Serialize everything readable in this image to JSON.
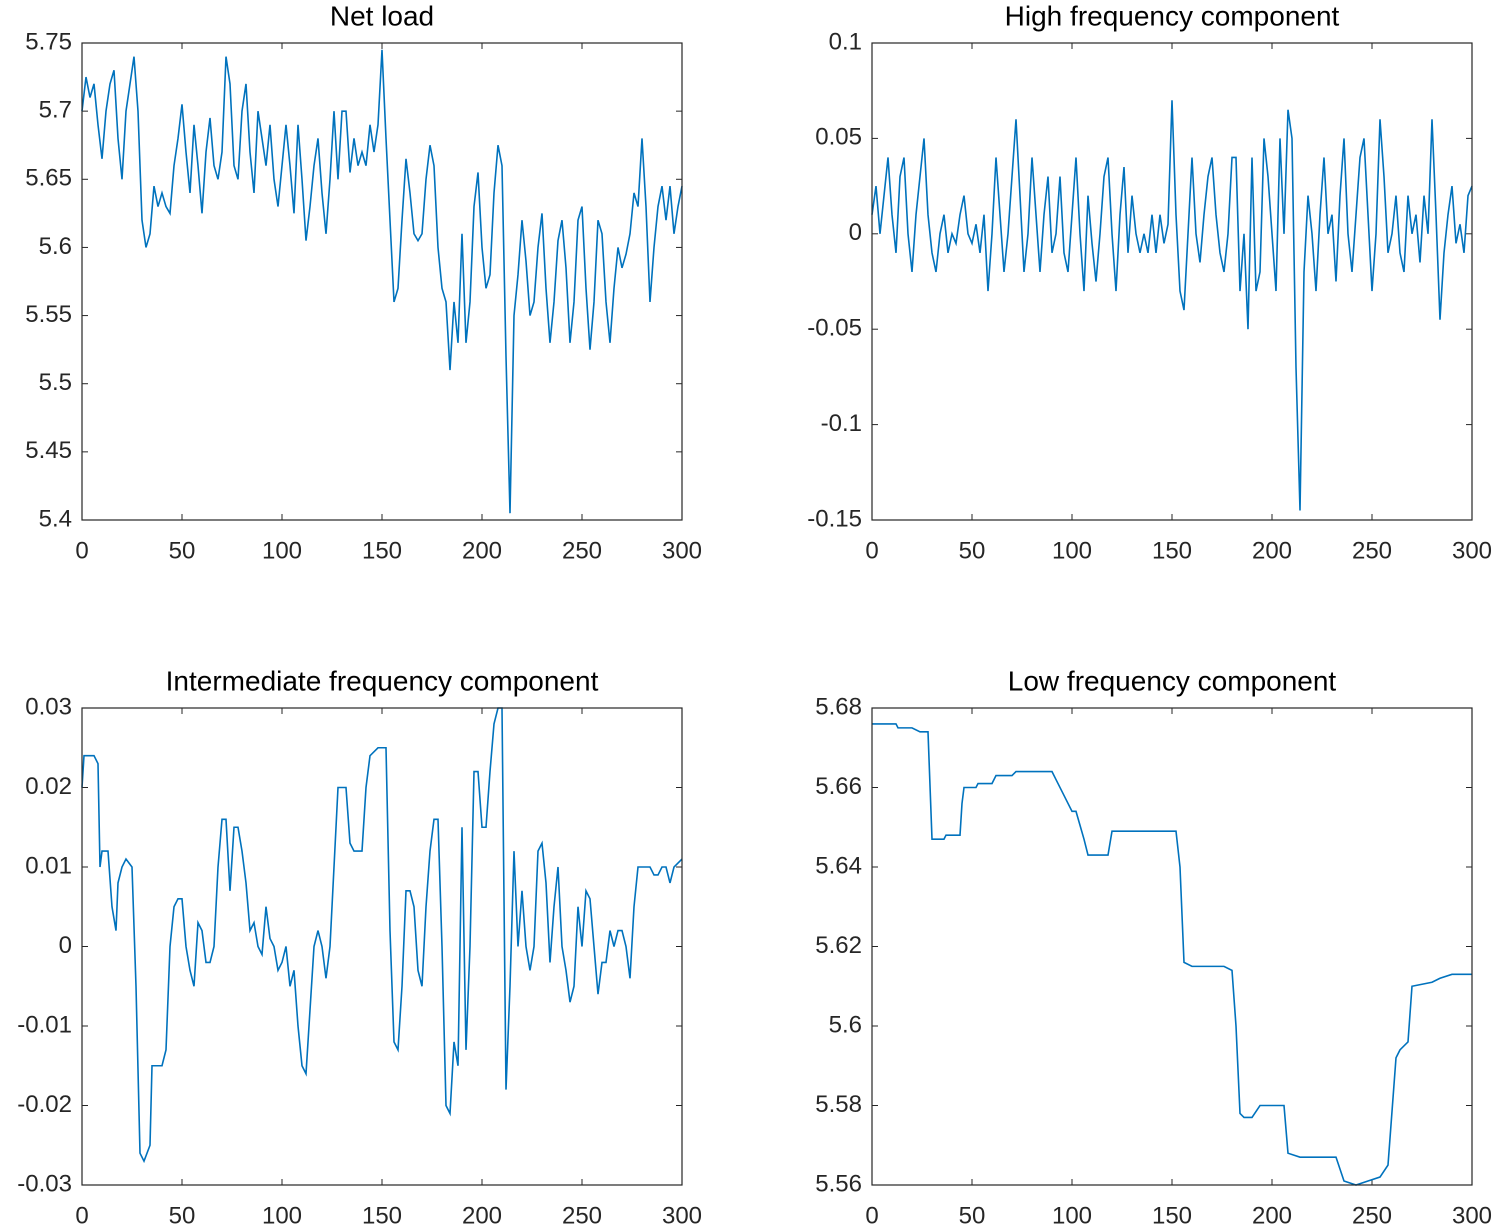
{
  "chart_data": [
    {
      "type": "line",
      "title": "Net load",
      "color": "#0072bd",
      "x": [
        0,
        2,
        4,
        6,
        8,
        10,
        12,
        14,
        16,
        18,
        20,
        22,
        24,
        26,
        28,
        30,
        32,
        34,
        36,
        38,
        40,
        42,
        44,
        46,
        48,
        50,
        52,
        54,
        56,
        58,
        60,
        62,
        64,
        66,
        68,
        70,
        72,
        74,
        76,
        78,
        80,
        82,
        84,
        86,
        88,
        90,
        92,
        94,
        96,
        98,
        100,
        102,
        104,
        106,
        108,
        110,
        112,
        114,
        116,
        118,
        120,
        122,
        124,
        126,
        128,
        130,
        132,
        134,
        136,
        138,
        140,
        142,
        144,
        146,
        148,
        150,
        152,
        154,
        156,
        158,
        160,
        162,
        164,
        166,
        168,
        170,
        172,
        174,
        176,
        178,
        180,
        182,
        184,
        186,
        188,
        190,
        192,
        194,
        196,
        198,
        200,
        202,
        204,
        206,
        208,
        210,
        212,
        214,
        216,
        218,
        220,
        222,
        224,
        226,
        228,
        230,
        232,
        234,
        236,
        238,
        240,
        242,
        244,
        246,
        248,
        250,
        252,
        254,
        256,
        258,
        260,
        262,
        264,
        266,
        268,
        270,
        272,
        274,
        276,
        278,
        280,
        282,
        284,
        286,
        288,
        290,
        292,
        294,
        296,
        298,
        300
      ],
      "values": [
        5.7,
        5.725,
        5.71,
        5.72,
        5.69,
        5.665,
        5.7,
        5.72,
        5.73,
        5.68,
        5.65,
        5.7,
        5.72,
        5.74,
        5.7,
        5.62,
        5.6,
        5.61,
        5.645,
        5.63,
        5.64,
        5.63,
        5.625,
        5.66,
        5.68,
        5.705,
        5.67,
        5.64,
        5.69,
        5.66,
        5.625,
        5.67,
        5.695,
        5.66,
        5.65,
        5.67,
        5.74,
        5.72,
        5.66,
        5.65,
        5.7,
        5.72,
        5.67,
        5.64,
        5.7,
        5.68,
        5.66,
        5.69,
        5.65,
        5.63,
        5.66,
        5.69,
        5.66,
        5.625,
        5.69,
        5.65,
        5.605,
        5.63,
        5.66,
        5.68,
        5.64,
        5.61,
        5.65,
        5.7,
        5.65,
        5.7,
        5.7,
        5.655,
        5.68,
        5.66,
        5.67,
        5.66,
        5.69,
        5.67,
        5.69,
        5.745,
        5.68,
        5.62,
        5.56,
        5.57,
        5.62,
        5.665,
        5.64,
        5.61,
        5.605,
        5.61,
        5.65,
        5.675,
        5.66,
        5.6,
        5.57,
        5.56,
        5.51,
        5.56,
        5.53,
        5.61,
        5.53,
        5.56,
        5.63,
        5.655,
        5.6,
        5.57,
        5.58,
        5.64,
        5.675,
        5.66,
        5.52,
        5.405,
        5.55,
        5.58,
        5.62,
        5.59,
        5.55,
        5.56,
        5.6,
        5.625,
        5.57,
        5.53,
        5.56,
        5.605,
        5.62,
        5.585,
        5.53,
        5.56,
        5.62,
        5.63,
        5.57,
        5.525,
        5.56,
        5.62,
        5.61,
        5.56,
        5.53,
        5.57,
        5.6,
        5.585,
        5.595,
        5.61,
        5.64,
        5.63,
        5.68,
        5.63,
        5.56,
        5.6,
        5.63,
        5.645,
        5.62,
        5.645,
        5.61,
        5.63,
        5.645
      ],
      "xlim": [
        0,
        300
      ],
      "xticks": [
        0,
        50,
        100,
        150,
        200,
        250,
        300
      ],
      "ylim": [
        5.4,
        5.75
      ],
      "yticks": [
        5.4,
        5.45,
        5.5,
        5.55,
        5.6,
        5.65,
        5.7,
        5.75
      ]
    },
    {
      "type": "line",
      "title": "High frequency component",
      "color": "#0072bd",
      "x": [
        0,
        2,
        4,
        6,
        8,
        10,
        12,
        14,
        16,
        18,
        20,
        22,
        24,
        26,
        28,
        30,
        32,
        34,
        36,
        38,
        40,
        42,
        44,
        46,
        48,
        50,
        52,
        54,
        56,
        58,
        60,
        62,
        64,
        66,
        68,
        70,
        72,
        74,
        76,
        78,
        80,
        82,
        84,
        86,
        88,
        90,
        92,
        94,
        96,
        98,
        100,
        102,
        104,
        106,
        108,
        110,
        112,
        114,
        116,
        118,
        120,
        122,
        124,
        126,
        128,
        130,
        132,
        134,
        136,
        138,
        140,
        142,
        144,
        146,
        148,
        150,
        152,
        154,
        156,
        158,
        160,
        162,
        164,
        166,
        168,
        170,
        172,
        174,
        176,
        178,
        180,
        182,
        184,
        186,
        188,
        190,
        192,
        194,
        196,
        198,
        200,
        202,
        204,
        206,
        208,
        210,
        212,
        214,
        216,
        218,
        220,
        222,
        224,
        226,
        228,
        230,
        232,
        234,
        236,
        238,
        240,
        242,
        244,
        246,
        248,
        250,
        252,
        254,
        256,
        258,
        260,
        262,
        264,
        266,
        268,
        270,
        272,
        274,
        276,
        278,
        280,
        282,
        284,
        286,
        288,
        290,
        292,
        294,
        296,
        298,
        300
      ],
      "values": [
        0.01,
        0.025,
        0.0,
        0.02,
        0.04,
        0.01,
        -0.01,
        0.03,
        0.04,
        0.0,
        -0.02,
        0.01,
        0.03,
        0.05,
        0.01,
        -0.01,
        -0.02,
        0.0,
        0.01,
        -0.01,
        0.0,
        -0.005,
        0.01,
        0.02,
        0.0,
        -0.005,
        0.005,
        -0.01,
        0.01,
        -0.03,
        0.0,
        0.04,
        0.01,
        -0.02,
        0.0,
        0.03,
        0.06,
        0.02,
        -0.02,
        0.0,
        0.04,
        0.01,
        -0.02,
        0.01,
        0.03,
        -0.01,
        0.0,
        0.03,
        -0.01,
        -0.02,
        0.01,
        0.04,
        0.0,
        -0.03,
        0.02,
        -0.005,
        -0.025,
        0.0,
        0.03,
        0.04,
        0.0,
        -0.03,
        0.01,
        0.035,
        -0.01,
        0.02,
        0.0,
        -0.01,
        0.0,
        -0.01,
        0.01,
        -0.01,
        0.01,
        -0.005,
        0.005,
        0.07,
        0.01,
        -0.03,
        -0.04,
        0.0,
        0.04,
        0.0,
        -0.015,
        0.01,
        0.03,
        0.04,
        0.01,
        -0.01,
        -0.02,
        0.0,
        0.04,
        0.04,
        -0.03,
        0.0,
        -0.05,
        0.04,
        -0.03,
        -0.02,
        0.05,
        0.03,
        0.0,
        -0.03,
        0.05,
        0.0,
        0.065,
        0.05,
        -0.07,
        -0.145,
        -0.02,
        0.02,
        0.0,
        -0.03,
        0.01,
        0.04,
        0.0,
        0.01,
        -0.025,
        0.02,
        0.05,
        0.0,
        -0.02,
        0.01,
        0.04,
        0.05,
        0.01,
        -0.03,
        0.0,
        0.06,
        0.03,
        -0.01,
        0.0,
        0.02,
        -0.01,
        -0.02,
        0.02,
        0.0,
        0.01,
        -0.015,
        0.02,
        0.0,
        0.06,
        0.01,
        -0.045,
        -0.01,
        0.01,
        0.025,
        -0.005,
        0.005,
        -0.01,
        0.02,
        0.025
      ],
      "xlim": [
        0,
        300
      ],
      "xticks": [
        0,
        50,
        100,
        150,
        200,
        250,
        300
      ],
      "ylim": [
        -0.15,
        0.1
      ],
      "yticks": [
        -0.15,
        -0.1,
        -0.05,
        0,
        0.05,
        0.1
      ]
    },
    {
      "type": "line",
      "title": "Intermediate frequency component",
      "color": "#0072bd",
      "x": [
        0,
        1,
        6,
        8,
        9,
        10,
        13,
        15,
        17,
        18,
        20,
        22,
        25,
        27,
        29,
        31,
        34,
        35,
        40,
        42,
        44,
        46,
        48,
        50,
        52,
        54,
        56,
        58,
        60,
        62,
        64,
        66,
        68,
        70,
        72,
        74,
        76,
        78,
        80,
        82,
        84,
        86,
        88,
        90,
        92,
        94,
        96,
        98,
        100,
        102,
        104,
        106,
        108,
        110,
        112,
        114,
        116,
        118,
        120,
        122,
        124,
        126,
        128,
        132,
        134,
        136,
        140,
        142,
        144,
        148,
        152,
        154,
        156,
        158,
        160,
        162,
        164,
        166,
        168,
        170,
        172,
        174,
        176,
        178,
        180,
        182,
        184,
        186,
        188,
        190,
        192,
        194,
        196,
        198,
        200,
        202,
        204,
        206,
        208,
        210,
        212,
        214,
        216,
        218,
        220,
        222,
        224,
        226,
        228,
        230,
        232,
        234,
        236,
        238,
        240,
        242,
        244,
        246,
        248,
        250,
        252,
        254,
        256,
        258,
        260,
        262,
        264,
        266,
        268,
        270,
        272,
        274,
        276,
        278,
        280,
        284,
        286,
        288,
        290,
        292,
        294,
        296,
        300
      ],
      "values": [
        0.02,
        0.024,
        0.024,
        0.023,
        0.01,
        0.012,
        0.012,
        0.005,
        0.002,
        0.008,
        0.01,
        0.011,
        0.01,
        -0.005,
        -0.026,
        -0.027,
        -0.025,
        -0.015,
        -0.015,
        -0.013,
        0.0,
        0.005,
        0.006,
        0.006,
        0.0,
        -0.003,
        -0.005,
        0.003,
        0.002,
        -0.002,
        -0.002,
        0.0,
        0.01,
        0.016,
        0.016,
        0.007,
        0.015,
        0.015,
        0.012,
        0.008,
        0.002,
        0.003,
        0.0,
        -0.001,
        0.005,
        0.001,
        0.0,
        -0.003,
        -0.002,
        0.0,
        -0.005,
        -0.003,
        -0.01,
        -0.015,
        -0.016,
        -0.008,
        0.0,
        0.002,
        0.0,
        -0.004,
        0.0,
        0.01,
        0.02,
        0.02,
        0.013,
        0.012,
        0.012,
        0.02,
        0.024,
        0.025,
        0.025,
        0.002,
        -0.012,
        -0.013,
        -0.005,
        0.007,
        0.007,
        0.005,
        -0.003,
        -0.005,
        0.005,
        0.012,
        0.016,
        0.016,
        0.0,
        -0.02,
        -0.021,
        -0.012,
        -0.015,
        0.015,
        -0.013,
        0.0,
        0.022,
        0.022,
        0.015,
        0.015,
        0.022,
        0.028,
        0.03,
        0.03,
        -0.018,
        -0.005,
        0.012,
        0.0,
        0.007,
        0.0,
        -0.003,
        0.0,
        0.012,
        0.013,
        0.008,
        -0.002,
        0.005,
        0.01,
        0.0,
        -0.003,
        -0.007,
        -0.005,
        0.005,
        0.0,
        0.007,
        0.006,
        0.0,
        -0.006,
        -0.002,
        -0.002,
        0.002,
        0.0,
        0.002,
        0.002,
        0.0,
        -0.004,
        0.005,
        0.01,
        0.01,
        0.01,
        0.009,
        0.009,
        0.01,
        0.01,
        0.008,
        0.01,
        0.011
      ],
      "xlim": [
        0,
        300
      ],
      "xticks": [
        0,
        50,
        100,
        150,
        200,
        250,
        300
      ],
      "ylim": [
        -0.03,
        0.03
      ],
      "yticks": [
        -0.03,
        -0.02,
        -0.01,
        0,
        0.01,
        0.02,
        0.03
      ]
    },
    {
      "type": "line",
      "title": "Low frequency component",
      "color": "#0072bd",
      "x": [
        0,
        12,
        13,
        20,
        24,
        28,
        30,
        36,
        37,
        44,
        45,
        46,
        52,
        53,
        60,
        62,
        70,
        72,
        90,
        92,
        96,
        100,
        102,
        106,
        108,
        112,
        118,
        120,
        136,
        150,
        152,
        154,
        156,
        160,
        170,
        176,
        180,
        182,
        184,
        186,
        190,
        194,
        206,
        208,
        214,
        226,
        232,
        236,
        242,
        248,
        254,
        258,
        262,
        264,
        268,
        270,
        280,
        284,
        290,
        300
      ],
      "values": [
        5.676,
        5.676,
        5.675,
        5.675,
        5.674,
        5.674,
        5.647,
        5.647,
        5.648,
        5.648,
        5.656,
        5.66,
        5.66,
        5.661,
        5.661,
        5.663,
        5.663,
        5.664,
        5.664,
        5.662,
        5.658,
        5.654,
        5.654,
        5.647,
        5.643,
        5.643,
        5.643,
        5.649,
        5.649,
        5.649,
        5.649,
        5.64,
        5.616,
        5.615,
        5.615,
        5.615,
        5.614,
        5.6,
        5.578,
        5.577,
        5.577,
        5.58,
        5.58,
        5.568,
        5.567,
        5.567,
        5.567,
        5.561,
        5.56,
        5.561,
        5.562,
        5.565,
        5.592,
        5.594,
        5.596,
        5.61,
        5.611,
        5.612,
        5.613,
        5.613
      ],
      "xlim": [
        0,
        300
      ],
      "xticks": [
        0,
        50,
        100,
        150,
        200,
        250,
        300
      ],
      "ylim": [
        5.56,
        5.68
      ],
      "yticks": [
        5.56,
        5.58,
        5.6,
        5.62,
        5.64,
        5.66,
        5.68
      ]
    }
  ]
}
